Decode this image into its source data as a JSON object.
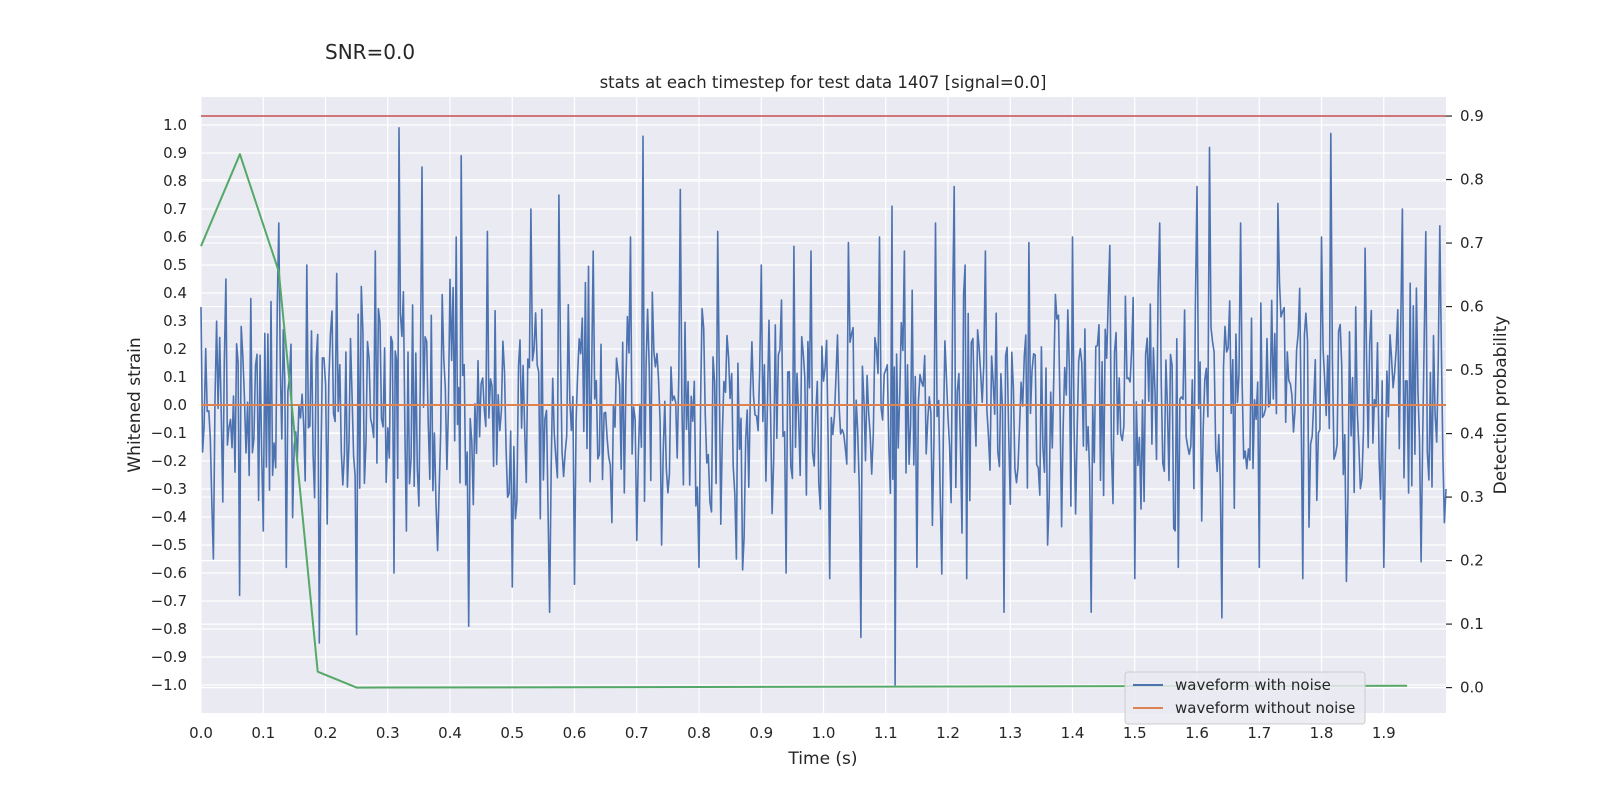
{
  "header": {
    "snr_label": "SNR=0.0"
  },
  "chart_data": {
    "type": "line",
    "title": "stats at each timestep for test data 1407 [signal=0.0]",
    "xlabel": "Time (s)",
    "ylabel": "Whitened strain",
    "ylabel_right": "Detection probability",
    "xlim": [
      0.0,
      2.0
    ],
    "ylim": [
      -1.1,
      1.1
    ],
    "ylim_right": [
      -0.04,
      0.93
    ],
    "x_ticks": [
      "0.0",
      "0.1",
      "0.2",
      "0.3",
      "0.4",
      "0.5",
      "0.6",
      "0.7",
      "0.8",
      "0.9",
      "1.0",
      "1.1",
      "1.2",
      "1.3",
      "1.4",
      "1.5",
      "1.6",
      "1.7",
      "1.8",
      "1.9"
    ],
    "y_ticks": [
      "1.0",
      "0.9",
      "0.8",
      "0.7",
      "0.6",
      "0.5",
      "0.4",
      "0.3",
      "0.2",
      "0.1",
      "0.0",
      "-0.1",
      "-0.2",
      "-0.3",
      "-0.4",
      "-0.5",
      "-0.6",
      "-0.7",
      "-0.8",
      "-0.9",
      "-1.0"
    ],
    "y_right_ticks": [
      "0.9",
      "0.8",
      "0.7",
      "0.6",
      "0.5",
      "0.4",
      "0.3",
      "0.2",
      "0.1",
      "0.0"
    ],
    "grid": true,
    "legend_position": "lower-right",
    "threshold": {
      "y": 0.9,
      "axis": "right",
      "color": "#c44e52"
    },
    "series": [
      {
        "name": "waveform with noise",
        "axis": "left",
        "color": "#4c72b0",
        "x": [
          0.0,
          0.02,
          0.04,
          0.062,
          0.08,
          0.1,
          0.125,
          0.137,
          0.17,
          0.19,
          0.218,
          0.25,
          0.28,
          0.31,
          0.318,
          0.33,
          0.355,
          0.38,
          0.41,
          0.418,
          0.43,
          0.46,
          0.5,
          0.53,
          0.56,
          0.575,
          0.6,
          0.63,
          0.66,
          0.69,
          0.71,
          0.74,
          0.77,
          0.8,
          0.83,
          0.86,
          0.9,
          0.94,
          0.98,
          1.01,
          1.04,
          1.06,
          1.09,
          1.11,
          1.115,
          1.13,
          1.15,
          1.18,
          1.21,
          1.23,
          1.26,
          1.29,
          1.33,
          1.36,
          1.4,
          1.43,
          1.46,
          1.5,
          1.54,
          1.57,
          1.6,
          1.62,
          1.64,
          1.67,
          1.7,
          1.73,
          1.77,
          1.8,
          1.815,
          1.84,
          1.87,
          1.9,
          1.93,
          1.96,
          1.99,
          2.0
        ],
        "y": [
          0.35,
          -0.55,
          0.45,
          -0.68,
          0.38,
          -0.45,
          0.65,
          -0.58,
          0.5,
          -0.85,
          0.47,
          -0.82,
          0.55,
          -0.6,
          0.99,
          -0.45,
          0.85,
          -0.52,
          0.6,
          0.89,
          -0.79,
          0.62,
          -0.65,
          0.7,
          -0.74,
          0.75,
          -0.64,
          0.55,
          -0.42,
          0.6,
          0.96,
          -0.5,
          0.77,
          -0.58,
          0.62,
          -0.55,
          0.5,
          -0.6,
          0.55,
          -0.62,
          0.58,
          -0.83,
          0.6,
          0.71,
          -1.0,
          0.55,
          -0.58,
          0.65,
          0.78,
          -0.62,
          0.55,
          -0.74,
          0.58,
          -0.5,
          0.6,
          -0.74,
          0.57,
          -0.62,
          0.65,
          -0.58,
          0.78,
          0.92,
          -0.76,
          0.65,
          -0.58,
          0.72,
          -0.62,
          0.6,
          0.97,
          -0.63,
          0.56,
          -0.58,
          0.7,
          -0.56,
          0.64,
          -0.3
        ]
      },
      {
        "name": "waveform without noise",
        "axis": "left",
        "color": "#dd8452",
        "x": [
          0.0,
          2.0
        ],
        "y": [
          0.0,
          0.0
        ]
      },
      {
        "name": "",
        "axis": "right",
        "color": "#55a868",
        "x": [
          0.0,
          0.0625,
          0.125,
          0.1875,
          0.25,
          1.9375
        ],
        "y": [
          0.695,
          0.84,
          0.655,
          0.025,
          0.0,
          0.003
        ]
      }
    ]
  }
}
